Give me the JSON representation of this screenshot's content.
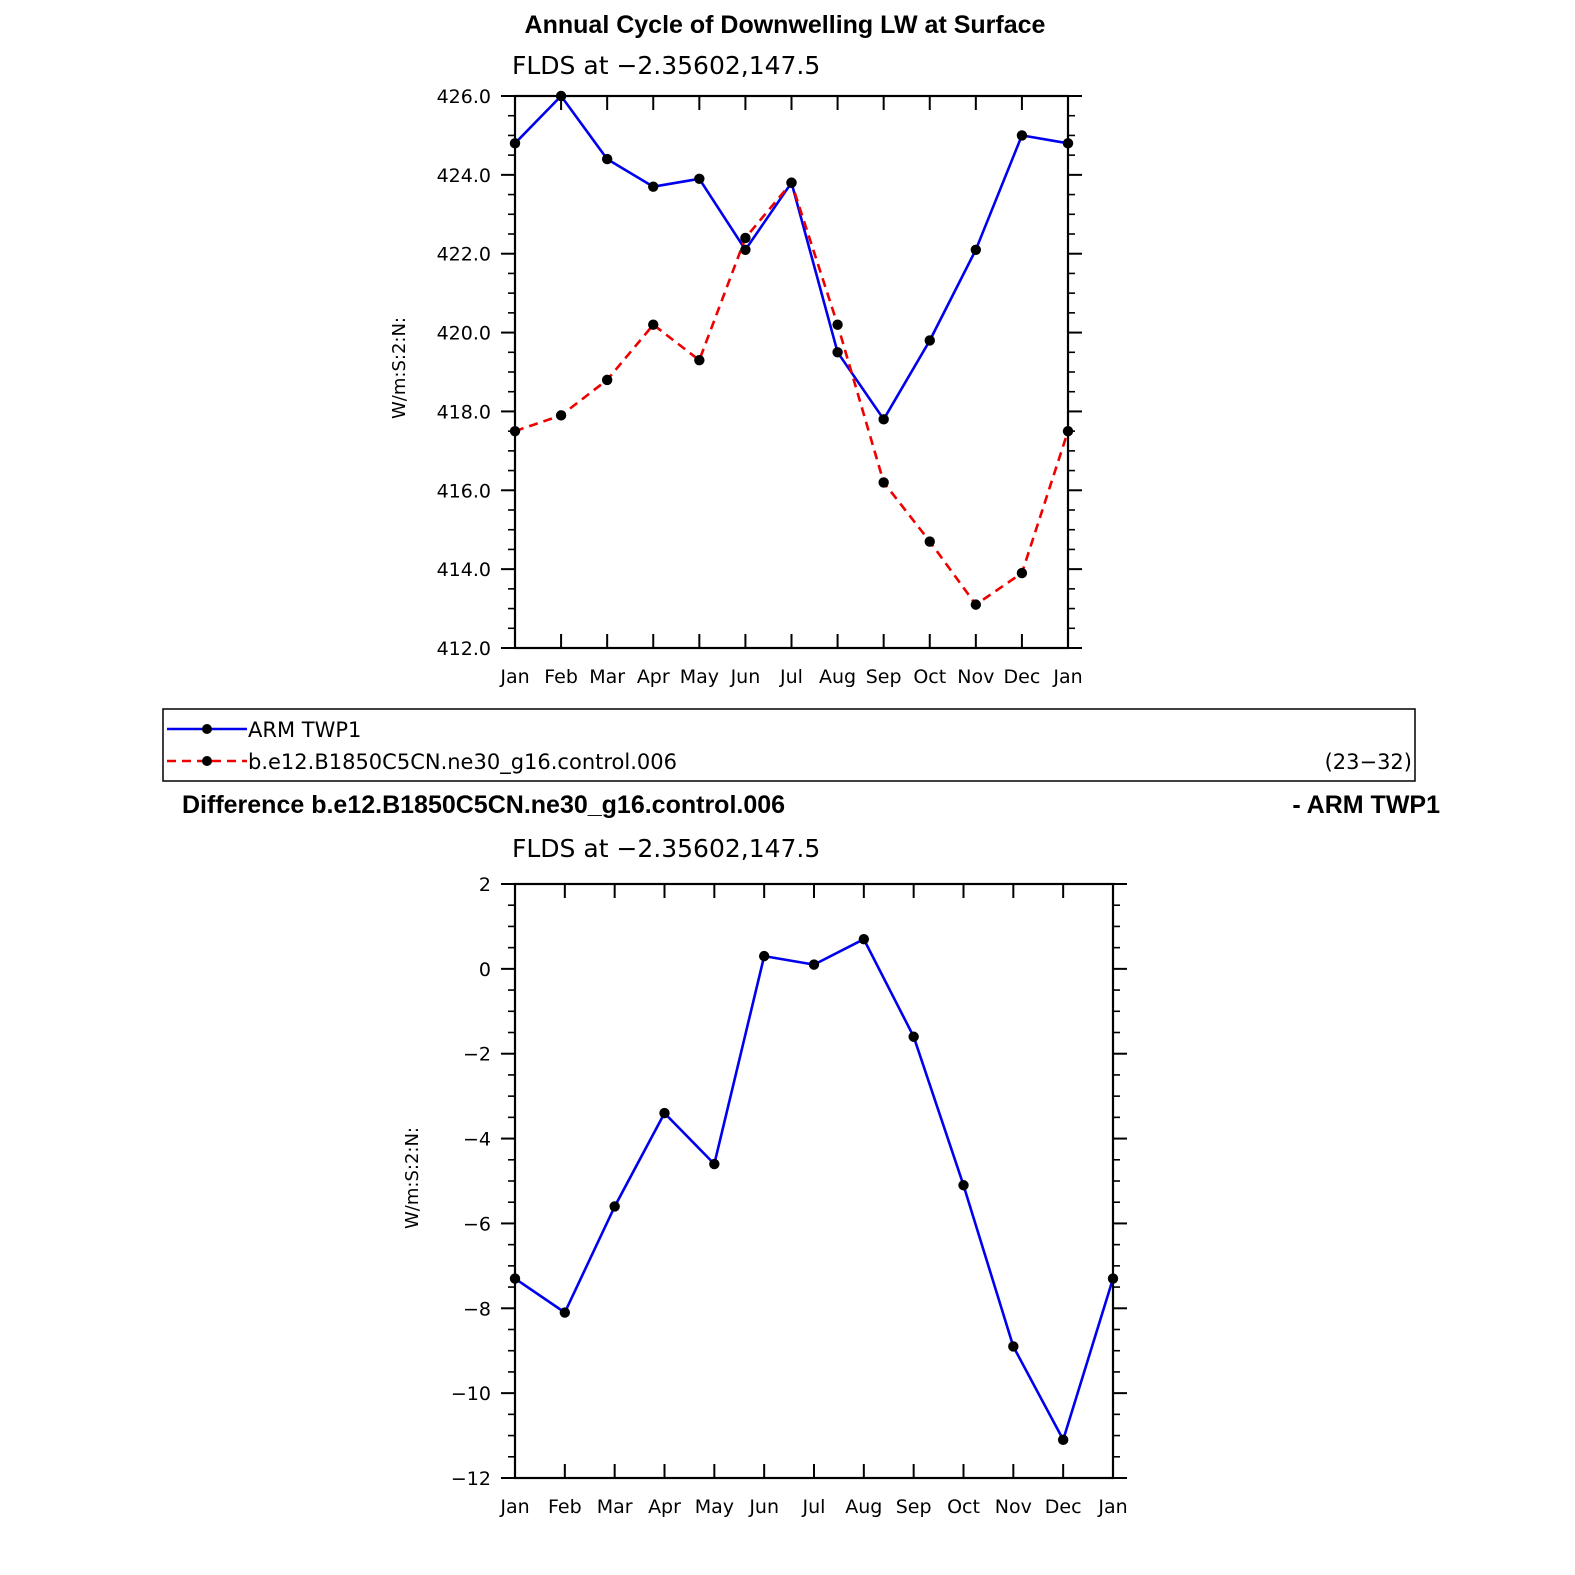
{
  "colors": {
    "series_blue": "#0000ee",
    "series_red": "#ee0000",
    "marker": "#000000",
    "frame": "#000000"
  },
  "chart_data": [
    {
      "type": "line",
      "title": "Annual Cycle of Downwelling LW at Surface",
      "subtitle": "FLDS at −2.35602,147.5",
      "xlabel": "",
      "ylabel": "W/m:S:2:N:",
      "categories": [
        "Jan",
        "Feb",
        "Mar",
        "Apr",
        "May",
        "Jun",
        "Jul",
        "Aug",
        "Sep",
        "Oct",
        "Nov",
        "Dec",
        "Jan"
      ],
      "ylim": [
        412,
        426
      ],
      "yticks": [
        "412.0",
        "414.0",
        "416.0",
        "418.0",
        "420.0",
        "422.0",
        "424.0",
        "426.0"
      ],
      "grid": false,
      "series": [
        {
          "name": "ARM  TWP1",
          "style": "solid",
          "color_key": "series_blue",
          "values": [
            424.8,
            426.0,
            424.4,
            423.7,
            423.9,
            422.1,
            423.8,
            419.5,
            417.8,
            419.8,
            422.1,
            425.0,
            424.8
          ]
        },
        {
          "name": "b.e12.B1850C5CN.ne30_g16.control.006",
          "style": "dashed",
          "color_key": "series_red",
          "values": [
            417.5,
            417.9,
            418.8,
            420.2,
            419.3,
            422.4,
            423.8,
            420.2,
            416.2,
            414.7,
            413.1,
            413.9,
            417.5
          ]
        }
      ],
      "legend": {
        "placement": "below",
        "note": "(23−32)"
      }
    },
    {
      "type": "line",
      "title_left": "Difference b.e12.B1850C5CN.ne30_g16.control.006",
      "title_right": "- ARM TWP1",
      "subtitle": "FLDS at −2.35602,147.5",
      "xlabel": "",
      "ylabel": "W/m:S:2:N:",
      "categories": [
        "Jan",
        "Feb",
        "Mar",
        "Apr",
        "May",
        "Jun",
        "Jul",
        "Aug",
        "Sep",
        "Oct",
        "Nov",
        "Dec",
        "Jan"
      ],
      "ylim": [
        -12,
        2
      ],
      "yticks": [
        "−12",
        "−10",
        "−8",
        "−6",
        "−4",
        "−2",
        "0",
        "2"
      ],
      "grid": false,
      "series": [
        {
          "style": "solid",
          "color_key": "series_blue",
          "values": [
            -7.3,
            -8.1,
            -5.6,
            -3.4,
            -4.6,
            0.3,
            0.1,
            0.7,
            -1.6,
            -5.1,
            -8.9,
            -11.1,
            -7.3
          ]
        }
      ]
    }
  ]
}
